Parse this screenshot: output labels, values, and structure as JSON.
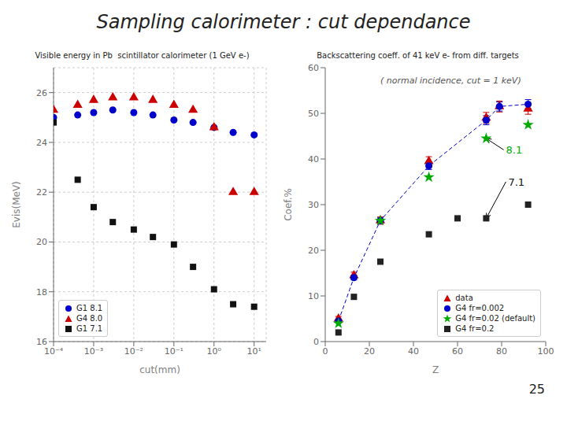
{
  "title": "Sampling calorimeter : cut dependance",
  "annotations": [
    {
      "text": "25"
    }
  ],
  "chart_data": [
    {
      "type": "scatter",
      "title": "Visible energy in Pb  scintillator calorimeter (1 GeV e-)",
      "xlabel": "cut(mm)",
      "ylabel": "Evis(MeV)",
      "log": "x",
      "xlim": [
        0.0001,
        19.952623149688797
      ],
      "xticks": [
        {
          "value": 0.0001,
          "label": "10⁻⁴"
        },
        {
          "value": 0.001,
          "label": "10⁻³"
        },
        {
          "value": 0.01,
          "label": "10⁻²"
        },
        {
          "value": 0.1,
          "label": "10⁻¹"
        },
        {
          "value": 1,
          "label": "10⁰"
        },
        {
          "value": 10,
          "label": "10¹"
        }
      ],
      "ylim": [
        16,
        27
      ],
      "yticks": [
        16,
        18,
        20,
        22,
        24,
        26
      ],
      "grid": true,
      "legend": "lower left",
      "series": [
        {
          "name": "G1 8.1",
          "color": "#0000cc",
          "marker": "circle",
          "x": [
            0.0001,
            0.0004,
            0.001,
            0.003,
            0.01,
            0.03,
            0.1,
            0.3,
            1,
            3,
            10
          ],
          "values": [
            25.0,
            25.1,
            25.2,
            25.3,
            25.2,
            25.1,
            24.9,
            24.8,
            24.6,
            24.4,
            24.3
          ]
        },
        {
          "name": "G4 8.0",
          "color": "#cc0000",
          "marker": "triangle",
          "x": [
            0.0001,
            0.0004,
            0.001,
            0.003,
            0.01,
            0.03,
            0.1,
            0.3,
            1,
            3,
            10
          ],
          "values": [
            25.3,
            25.5,
            25.7,
            25.8,
            25.8,
            25.7,
            25.5,
            25.3,
            24.6,
            22.0,
            22.0
          ]
        },
        {
          "name": "G1 7.1",
          "color": "#111111",
          "marker": "square",
          "x": [
            0.0001,
            0.0004,
            0.001,
            0.003,
            0.01,
            0.03,
            0.1,
            0.3,
            1,
            3,
            10
          ],
          "values": [
            24.8,
            22.5,
            21.4,
            20.8,
            20.5,
            20.2,
            19.9,
            19.0,
            18.1,
            17.5,
            17.4
          ]
        }
      ]
    },
    {
      "type": "scatter",
      "title": "Backscattering coeff. of 41 keV e- from diff. targets",
      "subtitle": "( normal incidence, cut = 1 keV)",
      "xlabel": "Z",
      "ylabel": "Coef.%",
      "xlim": [
        0,
        100
      ],
      "xticks": [
        0,
        20,
        40,
        60,
        80,
        100
      ],
      "ylim": [
        0,
        60
      ],
      "yticks": [
        0,
        10,
        20,
        30,
        40,
        50,
        60
      ],
      "grid": false,
      "legend": "lower right",
      "annotations": [
        {
          "text": "8.1",
          "x": 82,
          "y": 42,
          "arrow_x": 73,
          "arrow_y": 44.5,
          "color": "#00aa00"
        },
        {
          "text": "7.1",
          "x": 83,
          "y": 35,
          "arrow_x": 73,
          "arrow_y": 27.0,
          "color": "#111111"
        }
      ],
      "series": [
        {
          "name": "data",
          "color": "#cc0000",
          "marker": "triangle",
          "x": [
            6,
            13,
            25,
            47,
            73,
            79,
            92
          ],
          "values": [
            5.0,
            14.5,
            26.5,
            39.5,
            49.0,
            51.5,
            51.0
          ],
          "error": [
            0.5,
            0.7,
            0.8,
            1.0,
            1.2,
            1.2,
            1.2
          ]
        },
        {
          "name": "G4 fr=0.002",
          "color": "#0000cc",
          "marker": "circle",
          "line_style": "dashed",
          "x": [
            6,
            13,
            25,
            47,
            73,
            79,
            92
          ],
          "values": [
            4.5,
            14.0,
            26.5,
            38.5,
            48.5,
            51.5,
            52.0
          ],
          "error": [
            0.3,
            0.5,
            0.6,
            0.8,
            1.0,
            1.0,
            1.0
          ]
        },
        {
          "name": "G4 fr=0.02 (default)",
          "color": "#00aa00",
          "marker": "star",
          "x": [
            6,
            25,
            47,
            73,
            92
          ],
          "values": [
            4.0,
            26.5,
            36.0,
            44.5,
            47.5
          ]
        },
        {
          "name": "G4 fr=0.2",
          "color": "#222222",
          "marker": "square",
          "x": [
            6,
            13,
            25,
            47,
            60,
            73,
            92
          ],
          "values": [
            2.0,
            9.8,
            17.5,
            23.5,
            27.0,
            27.0,
            30.0
          ]
        }
      ]
    }
  ]
}
